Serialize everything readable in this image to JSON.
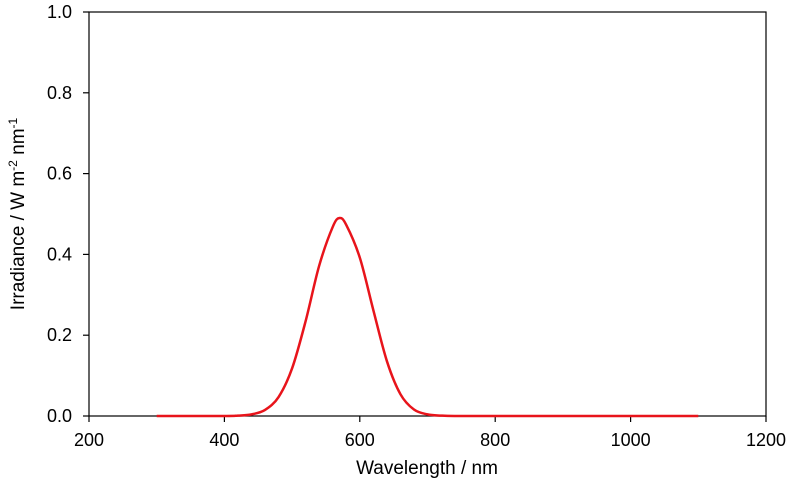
{
  "chart_data": {
    "type": "line",
    "title": "",
    "xlabel": "Wavelength / nm",
    "ylabel": {
      "parts": [
        {
          "text": "Irradiance / W m",
          "sup": false
        },
        {
          "text": "-2",
          "sup": true
        },
        {
          "text": " nm",
          "sup": false
        },
        {
          "text": "-1",
          "sup": true
        }
      ]
    },
    "xlim": [
      200,
      1200
    ],
    "ylim": [
      0,
      1.0
    ],
    "x_ticks": [
      200,
      400,
      600,
      800,
      1000,
      1200
    ],
    "x_tick_labels": [
      "200",
      "400",
      "600",
      "800",
      "1000",
      "1200"
    ],
    "y_ticks": [
      0,
      0.2,
      0.4,
      0.6,
      0.8,
      1.0
    ],
    "y_tick_labels": [
      "0.0",
      "0.2",
      "0.4",
      "0.6",
      "0.8",
      "1.0"
    ],
    "grid": false,
    "legend": "none",
    "series": [
      {
        "color": "#e8141b",
        "x": [
          300,
          400,
          420,
          440,
          460,
          480,
          500,
          520,
          540,
          560,
          570,
          580,
          600,
          620,
          640,
          660,
          680,
          700,
          720,
          740,
          800,
          900,
          1000,
          1100
        ],
        "y": [
          0.0,
          0.0,
          0.001,
          0.004,
          0.015,
          0.047,
          0.118,
          0.235,
          0.372,
          0.468,
          0.49,
          0.473,
          0.392,
          0.262,
          0.136,
          0.054,
          0.016,
          0.004,
          0.001,
          0.0,
          0.0,
          0.0,
          0.0,
          0.0
        ]
      }
    ]
  }
}
